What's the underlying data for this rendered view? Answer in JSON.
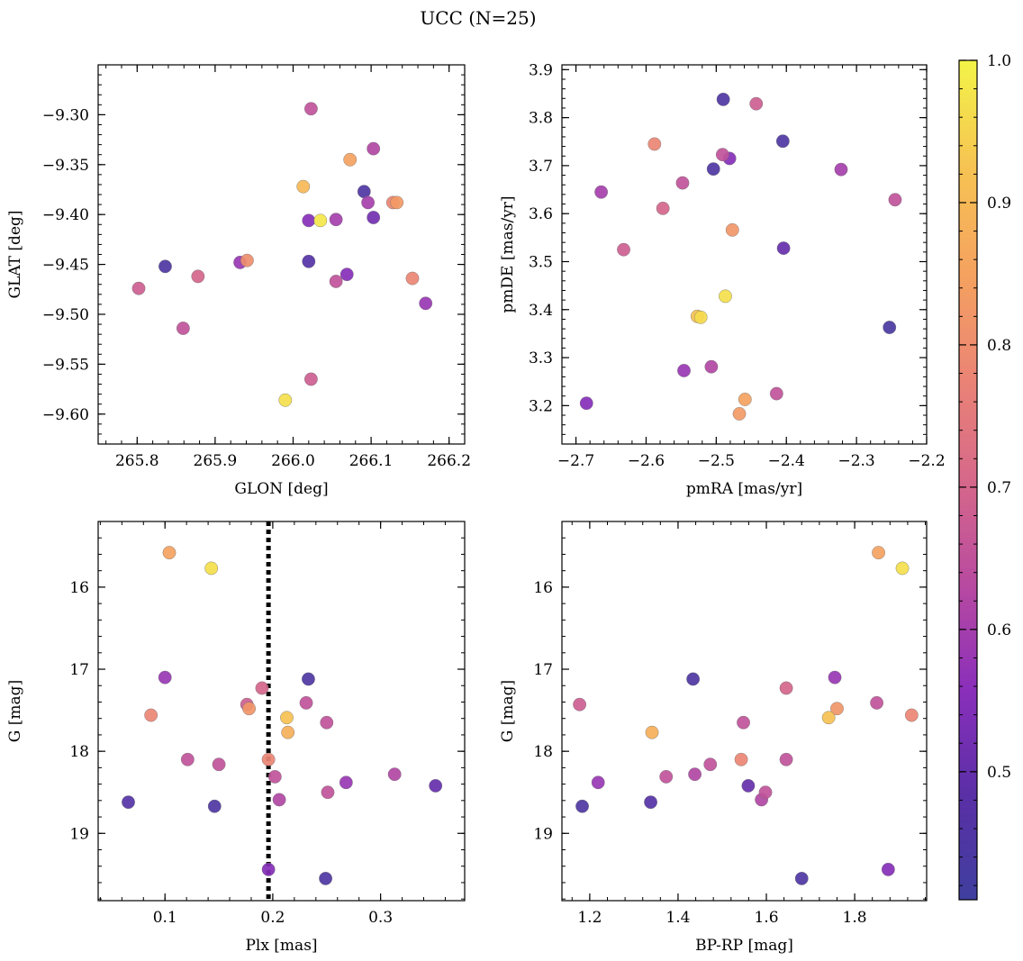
{
  "figure": {
    "title": "UCC (N=25)"
  },
  "colormap": {
    "name": "plasma",
    "stops": [
      "#3f3f9e",
      "#5a2fa6",
      "#8a2fbb",
      "#b84aa0",
      "#d6688a",
      "#eb8574",
      "#f5a35f",
      "#f6c452",
      "#f3f448"
    ],
    "range": [
      0.41,
      1.0
    ],
    "tick_values": [
      0.5,
      0.6,
      0.7,
      0.8,
      0.9,
      1.0
    ],
    "tick_labels": [
      "0.5",
      "0.6",
      "0.7",
      "0.8",
      "0.9",
      "1.0"
    ]
  },
  "chart_data": [
    {
      "type": "scatter",
      "xlabel": "GLON [deg]",
      "ylabel": "GLAT [deg]",
      "xlim": [
        265.75,
        266.22
      ],
      "ylim": [
        -9.63,
        -9.25
      ],
      "y_inverted": false,
      "xticks": [
        265.8,
        265.9,
        266.0,
        266.1,
        266.2
      ],
      "xtick_labels": [
        "265.8",
        "265.9",
        "266.0",
        "266.1",
        "266.2"
      ],
      "yticks": [
        -9.3,
        -9.35,
        -9.4,
        -9.45,
        -9.5,
        -9.55,
        -9.6
      ],
      "ytick_labels": [
        "−9.30",
        "−9.35",
        "−9.40",
        "−9.45",
        "−9.50",
        "−9.55",
        "−9.60"
      ],
      "points": [
        {
          "x": 266.023,
          "y": -9.294,
          "c": 0.65
        },
        {
          "x": 266.103,
          "y": -9.334,
          "c": 0.62
        },
        {
          "x": 266.073,
          "y": -9.345,
          "c": 0.85
        },
        {
          "x": 266.013,
          "y": -9.372,
          "c": 0.9
        },
        {
          "x": 266.091,
          "y": -9.377,
          "c": 0.45
        },
        {
          "x": 266.035,
          "y": -9.406,
          "c": 0.98
        },
        {
          "x": 266.02,
          "y": -9.406,
          "c": 0.55
        },
        {
          "x": 266.055,
          "y": -9.405,
          "c": 0.6
        },
        {
          "x": 266.096,
          "y": -9.388,
          "c": 0.6
        },
        {
          "x": 266.103,
          "y": -9.403,
          "c": 0.52
        },
        {
          "x": 266.128,
          "y": -9.388,
          "c": 0.78
        },
        {
          "x": 266.133,
          "y": -9.388,
          "c": 0.83
        },
        {
          "x": 265.836,
          "y": -9.452,
          "c": 0.45
        },
        {
          "x": 265.802,
          "y": -9.474,
          "c": 0.68
        },
        {
          "x": 265.878,
          "y": -9.462,
          "c": 0.7
        },
        {
          "x": 265.932,
          "y": -9.448,
          "c": 0.58
        },
        {
          "x": 265.941,
          "y": -9.446,
          "c": 0.8
        },
        {
          "x": 265.859,
          "y": -9.514,
          "c": 0.65
        },
        {
          "x": 266.02,
          "y": -9.447,
          "c": 0.47
        },
        {
          "x": 266.069,
          "y": -9.46,
          "c": 0.55
        },
        {
          "x": 266.055,
          "y": -9.467,
          "c": 0.65
        },
        {
          "x": 266.153,
          "y": -9.464,
          "c": 0.78
        },
        {
          "x": 266.17,
          "y": -9.489,
          "c": 0.58
        },
        {
          "x": 266.023,
          "y": -9.565,
          "c": 0.68
        },
        {
          "x": 265.99,
          "y": -9.586,
          "c": 0.97
        }
      ]
    },
    {
      "type": "scatter",
      "xlabel": "pmRA [mas/yr]",
      "ylabel": "pmDE [mas/yr]",
      "xlim": [
        -2.72,
        -2.2
      ],
      "ylim": [
        3.12,
        3.91
      ],
      "y_inverted": false,
      "xticks": [
        -2.7,
        -2.6,
        -2.5,
        -2.4,
        -2.3,
        -2.2
      ],
      "xtick_labels": [
        "−2.7",
        "−2.6",
        "−2.5",
        "−2.4",
        "−2.3",
        "−2.2"
      ],
      "yticks": [
        3.2,
        3.3,
        3.4,
        3.5,
        3.6,
        3.7,
        3.8,
        3.9
      ],
      "ytick_labels": [
        "3.2",
        "3.3",
        "3.4",
        "3.5",
        "3.6",
        "3.7",
        "3.8",
        "3.9"
      ],
      "points": [
        {
          "x": -2.49,
          "y": 3.838,
          "c": 0.45
        },
        {
          "x": -2.443,
          "y": 3.829,
          "c": 0.68
        },
        {
          "x": -2.405,
          "y": 3.751,
          "c": 0.45
        },
        {
          "x": -2.588,
          "y": 3.745,
          "c": 0.78
        },
        {
          "x": -2.491,
          "y": 3.723,
          "c": 0.65
        },
        {
          "x": -2.481,
          "y": 3.715,
          "c": 0.55
        },
        {
          "x": -2.504,
          "y": 3.693,
          "c": 0.45
        },
        {
          "x": -2.322,
          "y": 3.692,
          "c": 0.6
        },
        {
          "x": -2.548,
          "y": 3.664,
          "c": 0.65
        },
        {
          "x": -2.664,
          "y": 3.645,
          "c": 0.6
        },
        {
          "x": -2.245,
          "y": 3.629,
          "c": 0.65
        },
        {
          "x": -2.576,
          "y": 3.611,
          "c": 0.7
        },
        {
          "x": -2.477,
          "y": 3.566,
          "c": 0.82
        },
        {
          "x": -2.632,
          "y": 3.525,
          "c": 0.68
        },
        {
          "x": -2.404,
          "y": 3.528,
          "c": 0.5
        },
        {
          "x": -2.487,
          "y": 3.428,
          "c": 0.97
        },
        {
          "x": -2.527,
          "y": 3.386,
          "c": 0.92
        },
        {
          "x": -2.522,
          "y": 3.384,
          "c": 0.96
        },
        {
          "x": -2.253,
          "y": 3.363,
          "c": 0.44
        },
        {
          "x": -2.546,
          "y": 3.273,
          "c": 0.58
        },
        {
          "x": -2.507,
          "y": 3.281,
          "c": 0.62
        },
        {
          "x": -2.414,
          "y": 3.225,
          "c": 0.65
        },
        {
          "x": -2.459,
          "y": 3.213,
          "c": 0.85
        },
        {
          "x": -2.685,
          "y": 3.205,
          "c": 0.55
        },
        {
          "x": -2.467,
          "y": 3.183,
          "c": 0.83
        }
      ]
    },
    {
      "type": "scatter",
      "xlabel": "Plx [mas]",
      "ylabel": "G [mag]",
      "xlim": [
        0.038,
        0.378
      ],
      "ylim": [
        19.82,
        15.2
      ],
      "y_inverted": true,
      "vline": {
        "x": 0.196,
        "style": "dotted",
        "color": "#000000"
      },
      "xticks": [
        0.1,
        0.2,
        0.3
      ],
      "xtick_labels": [
        "0.1",
        "0.2",
        "0.3"
      ],
      "yticks": [
        16,
        17,
        18,
        19
      ],
      "ytick_labels": [
        "16",
        "17",
        "18",
        "19"
      ],
      "points": [
        {
          "x": 0.104,
          "y": 15.58,
          "c": 0.85
        },
        {
          "x": 0.143,
          "y": 15.77,
          "c": 0.97
        },
        {
          "x": 0.1,
          "y": 17.1,
          "c": 0.58
        },
        {
          "x": 0.233,
          "y": 17.12,
          "c": 0.45
        },
        {
          "x": 0.19,
          "y": 17.23,
          "c": 0.7
        },
        {
          "x": 0.176,
          "y": 17.43,
          "c": 0.68
        },
        {
          "x": 0.178,
          "y": 17.48,
          "c": 0.82
        },
        {
          "x": 0.231,
          "y": 17.41,
          "c": 0.65
        },
        {
          "x": 0.087,
          "y": 17.56,
          "c": 0.78
        },
        {
          "x": 0.213,
          "y": 17.59,
          "c": 0.92
        },
        {
          "x": 0.25,
          "y": 17.65,
          "c": 0.65
        },
        {
          "x": 0.214,
          "y": 17.77,
          "c": 0.88
        },
        {
          "x": 0.121,
          "y": 18.1,
          "c": 0.65
        },
        {
          "x": 0.196,
          "y": 18.1,
          "c": 0.78
        },
        {
          "x": 0.15,
          "y": 18.16,
          "c": 0.65
        },
        {
          "x": 0.202,
          "y": 18.31,
          "c": 0.65
        },
        {
          "x": 0.313,
          "y": 18.28,
          "c": 0.62
        },
        {
          "x": 0.268,
          "y": 18.38,
          "c": 0.58
        },
        {
          "x": 0.351,
          "y": 18.42,
          "c": 0.5
        },
        {
          "x": 0.251,
          "y": 18.5,
          "c": 0.65
        },
        {
          "x": 0.206,
          "y": 18.59,
          "c": 0.62
        },
        {
          "x": 0.066,
          "y": 18.62,
          "c": 0.47
        },
        {
          "x": 0.146,
          "y": 18.67,
          "c": 0.45
        },
        {
          "x": 0.196,
          "y": 19.44,
          "c": 0.55
        },
        {
          "x": 0.249,
          "y": 19.55,
          "c": 0.45
        }
      ]
    },
    {
      "type": "scatter",
      "xlabel": "BP-RP [mag]",
      "ylabel": "G [mag]",
      "xlim": [
        1.137,
        1.963
      ],
      "ylim": [
        19.82,
        15.2
      ],
      "y_inverted": true,
      "xticks": [
        1.2,
        1.4,
        1.6,
        1.8
      ],
      "xtick_labels": [
        "1.2",
        "1.4",
        "1.6",
        "1.8"
      ],
      "yticks": [
        16,
        17,
        18,
        19
      ],
      "ytick_labels": [
        "16",
        "17",
        "18",
        "19"
      ],
      "points": [
        {
          "x": 1.854,
          "y": 15.58,
          "c": 0.85
        },
        {
          "x": 1.908,
          "y": 15.77,
          "c": 0.97
        },
        {
          "x": 1.755,
          "y": 17.1,
          "c": 0.58
        },
        {
          "x": 1.434,
          "y": 17.12,
          "c": 0.45
        },
        {
          "x": 1.645,
          "y": 17.23,
          "c": 0.7
        },
        {
          "x": 1.177,
          "y": 17.43,
          "c": 0.68
        },
        {
          "x": 1.85,
          "y": 17.41,
          "c": 0.65
        },
        {
          "x": 1.76,
          "y": 17.48,
          "c": 0.82
        },
        {
          "x": 1.929,
          "y": 17.56,
          "c": 0.78
        },
        {
          "x": 1.741,
          "y": 17.59,
          "c": 0.92
        },
        {
          "x": 1.548,
          "y": 17.65,
          "c": 0.65
        },
        {
          "x": 1.341,
          "y": 17.77,
          "c": 0.88
        },
        {
          "x": 1.543,
          "y": 18.1,
          "c": 0.78
        },
        {
          "x": 1.645,
          "y": 18.1,
          "c": 0.65
        },
        {
          "x": 1.473,
          "y": 18.16,
          "c": 0.65
        },
        {
          "x": 1.373,
          "y": 18.31,
          "c": 0.65
        },
        {
          "x": 1.438,
          "y": 18.28,
          "c": 0.62
        },
        {
          "x": 1.219,
          "y": 18.38,
          "c": 0.58
        },
        {
          "x": 1.559,
          "y": 18.42,
          "c": 0.5
        },
        {
          "x": 1.598,
          "y": 18.5,
          "c": 0.65
        },
        {
          "x": 1.589,
          "y": 18.59,
          "c": 0.62
        },
        {
          "x": 1.338,
          "y": 18.62,
          "c": 0.47
        },
        {
          "x": 1.183,
          "y": 18.67,
          "c": 0.45
        },
        {
          "x": 1.876,
          "y": 19.44,
          "c": 0.55
        },
        {
          "x": 1.68,
          "y": 19.55,
          "c": 0.45
        }
      ]
    }
  ]
}
